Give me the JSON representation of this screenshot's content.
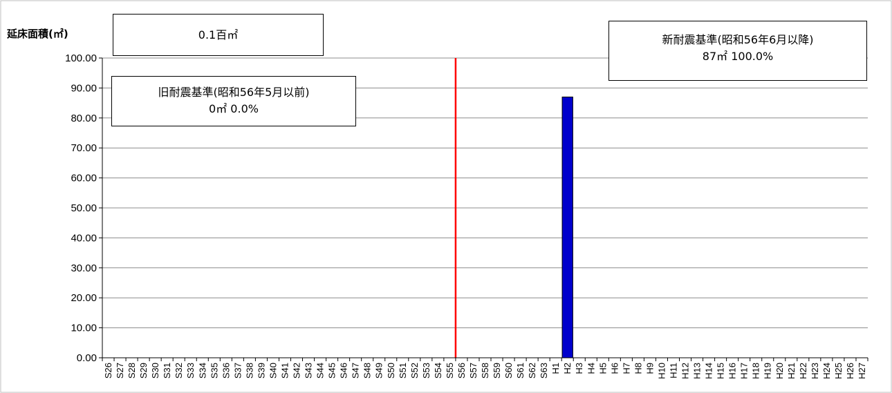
{
  "chart_data": {
    "type": "bar",
    "ylabel": "延床面積(㎡)",
    "ylim": [
      0,
      100
    ],
    "yticks": [
      "0.00",
      "10.00",
      "20.00",
      "30.00",
      "40.00",
      "50.00",
      "60.00",
      "70.00",
      "80.00",
      "90.00",
      "100.00"
    ],
    "grid": true,
    "categories": [
      "S26",
      "S27",
      "S28",
      "S29",
      "S30",
      "S31",
      "S32",
      "S33",
      "S34",
      "S35",
      "S36",
      "S37",
      "S38",
      "S39",
      "S40",
      "S41",
      "S42",
      "S43",
      "S44",
      "S45",
      "S46",
      "S47",
      "S48",
      "S49",
      "S50",
      "S51",
      "S52",
      "S53",
      "S54",
      "S55",
      "S56",
      "S57",
      "S58",
      "S59",
      "S60",
      "S61",
      "S62",
      "S63",
      "H1",
      "H2",
      "H3",
      "H4",
      "H5",
      "H6",
      "H7",
      "H8",
      "H9",
      "H10",
      "H11",
      "H12",
      "H13",
      "H14",
      "H15",
      "H16",
      "H17",
      "H18",
      "H19",
      "H20",
      "H21",
      "H22",
      "H23",
      "H24",
      "H25",
      "H26",
      "H27"
    ],
    "values": [
      0,
      0,
      0,
      0,
      0,
      0,
      0,
      0,
      0,
      0,
      0,
      0,
      0,
      0,
      0,
      0,
      0,
      0,
      0,
      0,
      0,
      0,
      0,
      0,
      0,
      0,
      0,
      0,
      0,
      0,
      0,
      0,
      0,
      0,
      0,
      0,
      0,
      0,
      0,
      87,
      0,
      0,
      0,
      0,
      0,
      0,
      0,
      0,
      0,
      0,
      0,
      0,
      0,
      0,
      0,
      0,
      0,
      0,
      0,
      0,
      0,
      0,
      0,
      0,
      0
    ],
    "bar_color": "#0000cc",
    "divider_color": "#ff0000",
    "divider_between": [
      "S55",
      "S56"
    ]
  },
  "annotations": {
    "total": "0.1百㎡",
    "old_standard_title": "旧耐震基準(昭和56年5月以前)",
    "old_standard_value": "0㎡  0.0%",
    "new_standard_title": "新耐震基準(昭和56年6月以降)",
    "new_standard_value": "87㎡  100.0%"
  }
}
